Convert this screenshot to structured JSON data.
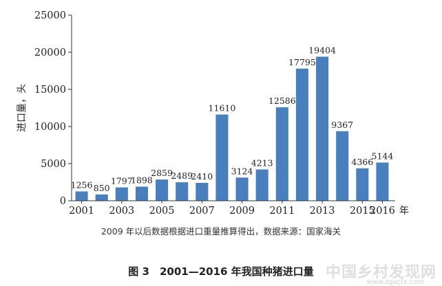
{
  "chart_data": {
    "type": "bar",
    "categories": [
      "2001",
      "2002",
      "2003",
      "2004",
      "2005",
      "2006",
      "2007",
      "2008",
      "2009",
      "2010",
      "2011",
      "2012",
      "2013",
      "2014",
      "2015",
      "2016"
    ],
    "values": [
      1256,
      850,
      1797,
      1898,
      2859,
      2489,
      2410,
      11610,
      3124,
      4213,
      12586,
      17795,
      19404,
      9367,
      4366,
      5144
    ],
    "data_labels": [
      "1256",
      "850",
      "1797",
      "1898",
      "2859",
      "2489",
      "2410",
      "11610",
      "3124",
      "4213",
      "12586",
      "17795",
      "19404",
      "9367",
      "4366",
      "5144"
    ],
    "x_tick_labels": [
      "2001",
      "2003",
      "2005",
      "2007",
      "2009",
      "2011",
      "2013",
      "2015",
      "2016"
    ],
    "x_tick_categories": [
      "2001",
      "2003",
      "2005",
      "2007",
      "2009",
      "2011",
      "2013",
      "2015",
      "2016"
    ],
    "xlabel": "年",
    "ylabel": "进口量，头",
    "ylim": [
      0,
      25000
    ],
    "y_ticks": [
      0,
      5000,
      10000,
      15000,
      20000,
      25000
    ],
    "grid": false,
    "bar_color": "#4a7fbd"
  },
  "note": "2009 年以后数据根据进口重量推算得出，数据来源：国家海关",
  "caption": "图 3　2001—2016 年我国种猪进口量",
  "watermark": {
    "text": "中国乡村发现网",
    "url": "www.zgxcfx.com"
  }
}
